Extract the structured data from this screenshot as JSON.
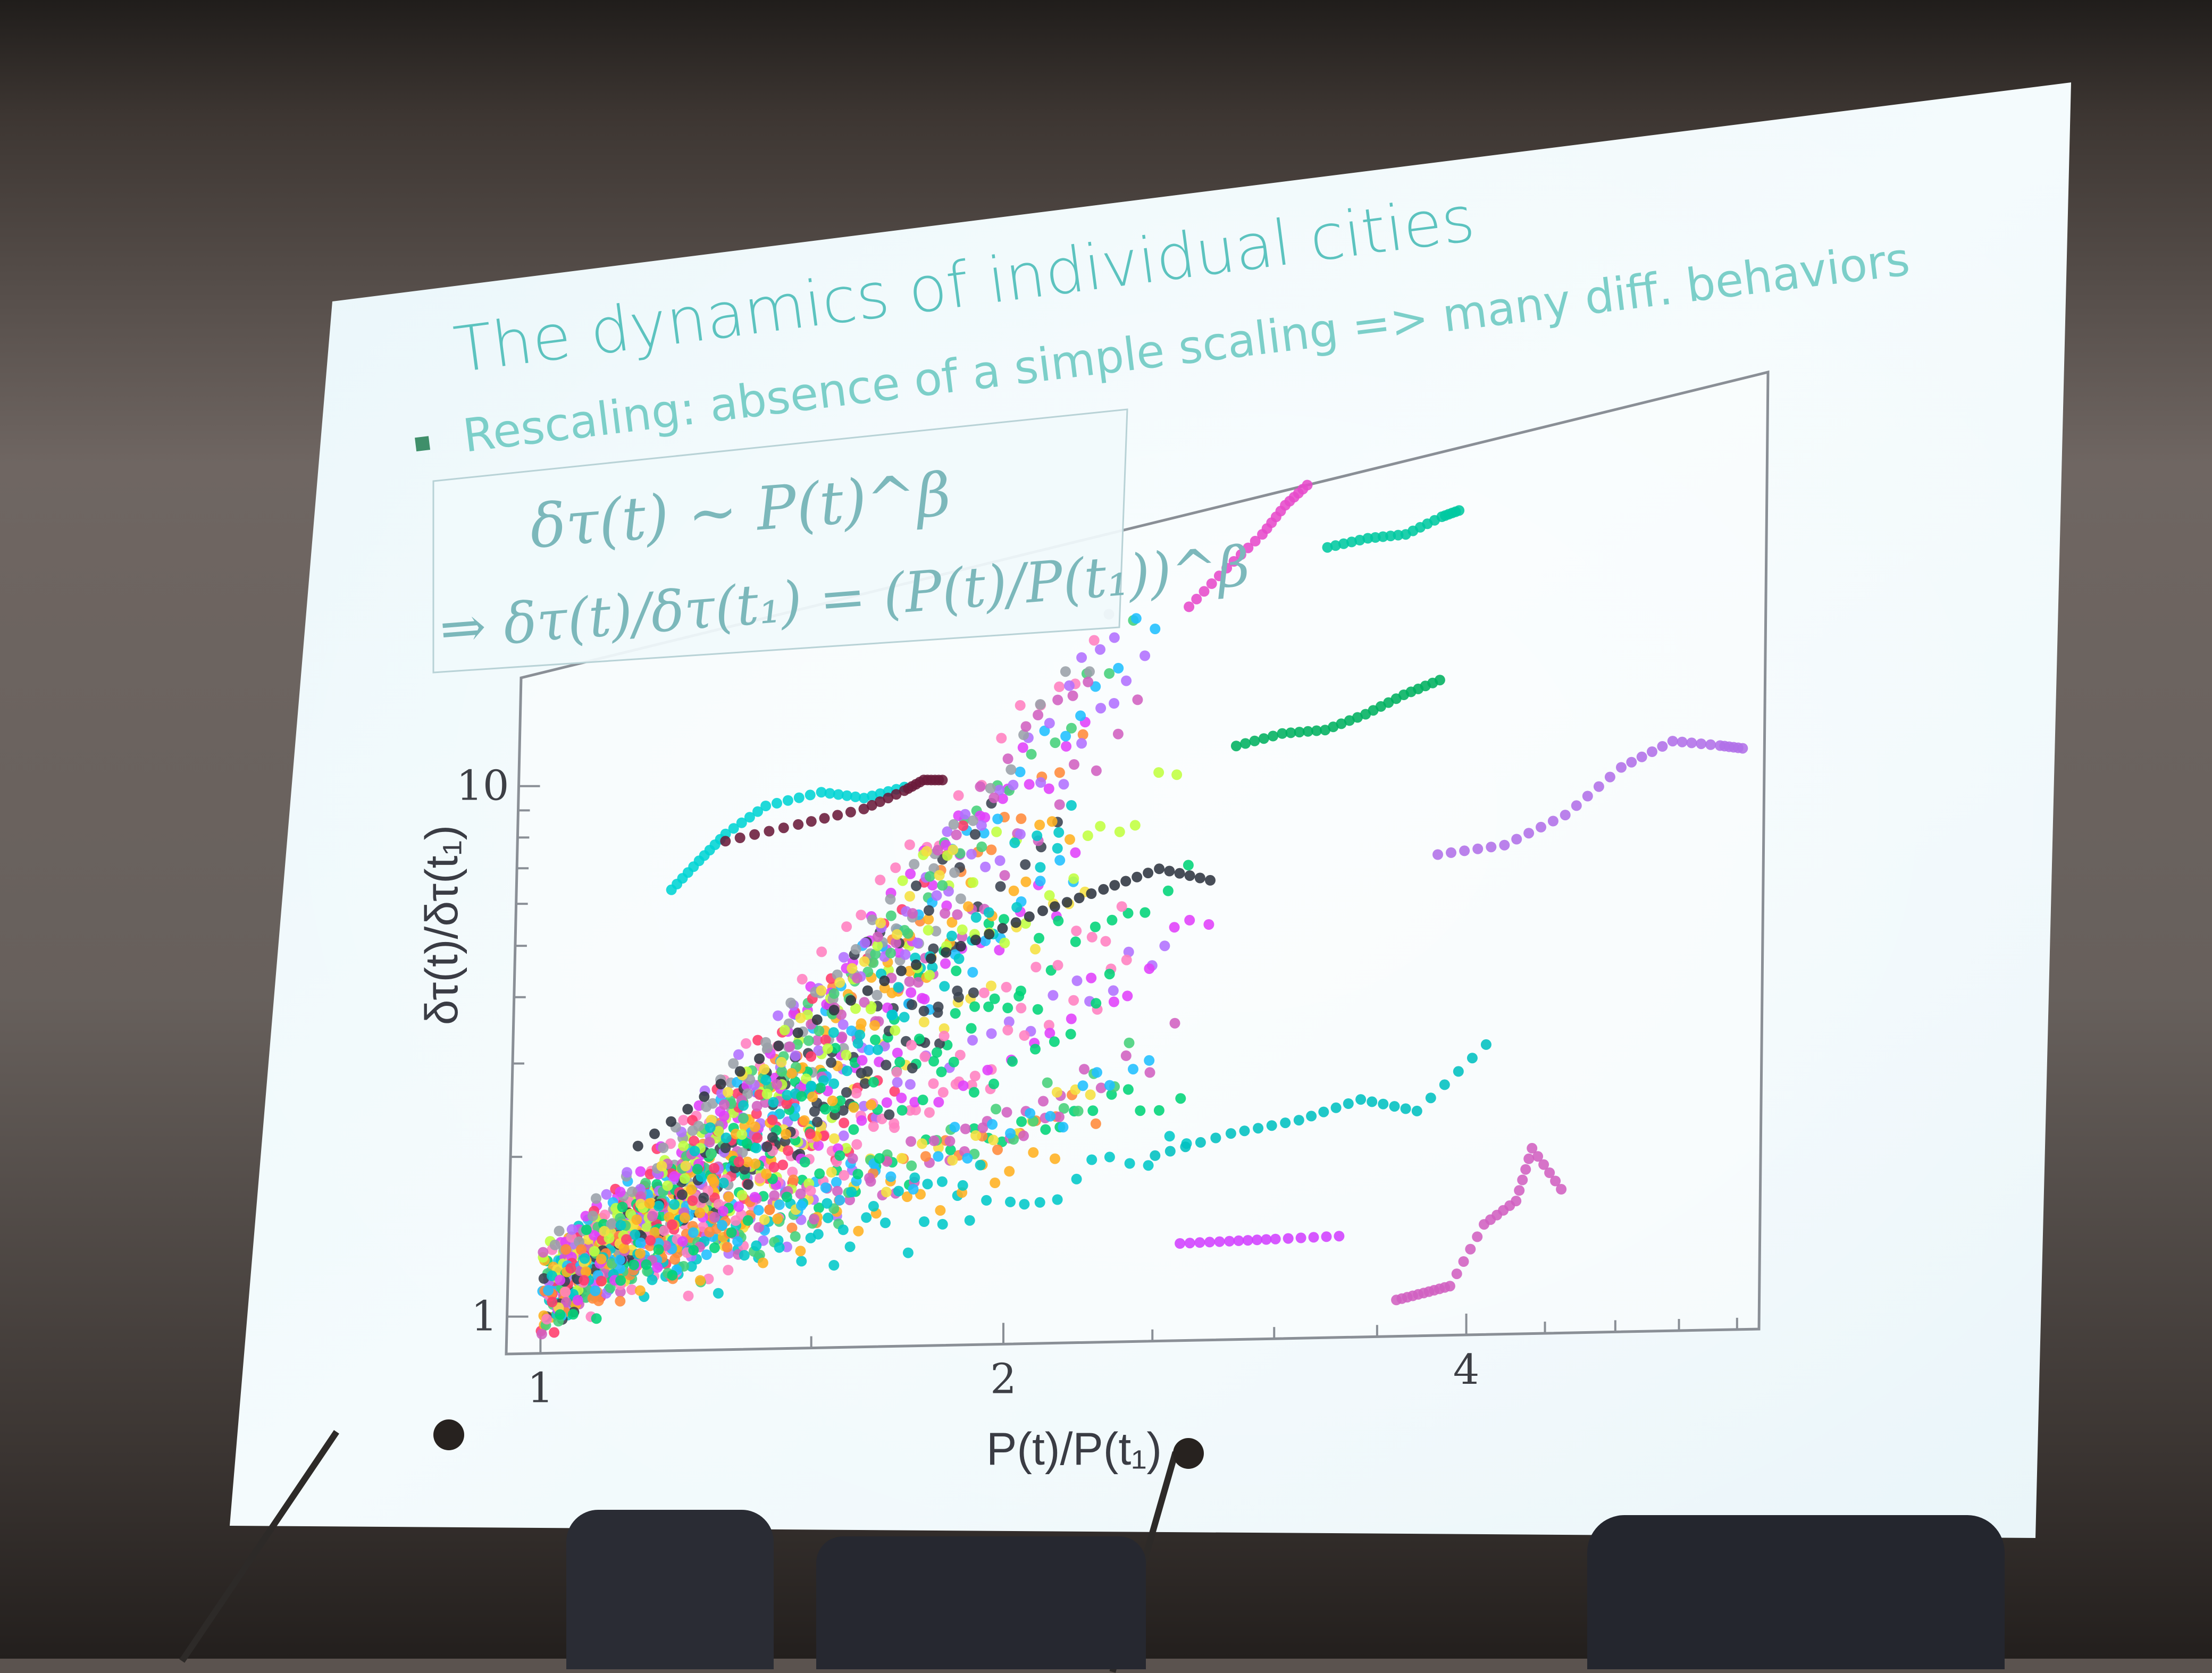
{
  "slide": {
    "title": "The dynamics of individual cities",
    "bullet": "Rescaling: absence of a simple scaling => many diff. behaviors",
    "formula_line1": "δτ(t) ~ P(t)^β",
    "formula_line2": "⇒ δτ(t)/δτ(t₁) = (P(t)/P(t₁))^β"
  },
  "colors": {
    "screen": "#eef8fb",
    "title": "#5cc3bf",
    "bullet_marker": "#3f8f6a",
    "wall": "#67605c",
    "chair": "#2a2c34"
  },
  "chart_data": {
    "type": "scatter",
    "xlabel": "P(t)/P(t₁)",
    "ylabel": "δτ(t)/δτ(t₁)",
    "x_scale": "log",
    "y_scale": "log",
    "xlim": [
      0.95,
      6.2
    ],
    "ylim": [
      0.85,
      16
    ],
    "x_ticks": [
      1,
      2,
      4
    ],
    "y_ticks": [
      1,
      10
    ],
    "palette": [
      "#00c8c8",
      "#e040fb",
      "#00d478",
      "#ffb020",
      "#ff3b6b",
      "#b070ff",
      "#ff80c0",
      "#9aa0a8",
      "#3a4250",
      "#ff8a3a",
      "#44d07a",
      "#c0ff40",
      "#1fbfff",
      "#d060c0",
      "#f5e040"
    ],
    "highlighted_series": [
      {
        "name": "",
        "color": "#00d4d4",
        "points": [
          [
            1.2,
            5.7
          ],
          [
            1.25,
            6.3
          ],
          [
            1.3,
            6.9
          ],
          [
            1.38,
            7.5
          ],
          [
            1.5,
            7.6
          ],
          [
            1.6,
            7.2
          ],
          [
            1.7,
            7.3
          ]
        ]
      },
      {
        "name": "",
        "color": "#6a1a3a",
        "points": [
          [
            1.3,
            6.7
          ],
          [
            1.45,
            6.8
          ],
          [
            1.6,
            6.9
          ],
          [
            1.7,
            7.2
          ],
          [
            1.75,
            7.4
          ],
          [
            1.8,
            7.3
          ]
        ]
      },
      {
        "name": "",
        "color": "#e64acb",
        "points": [
          [
            2.6,
            11.5
          ],
          [
            2.75,
            12.8
          ],
          [
            2.9,
            14.0
          ],
          [
            3.0,
            15.2
          ],
          [
            3.1,
            16.0
          ]
        ]
      },
      {
        "name": "",
        "color": "#00c8a0",
        "points": [
          [
            3.2,
            12.7
          ],
          [
            3.4,
            12.7
          ],
          [
            3.6,
            12.5
          ],
          [
            3.8,
            12.9
          ],
          [
            3.9,
            13.0
          ]
        ]
      },
      {
        "name": "",
        "color": "#00b060",
        "points": [
          [
            2.8,
            6.8
          ],
          [
            3.0,
            6.9
          ],
          [
            3.2,
            6.8
          ],
          [
            3.4,
            7.0
          ],
          [
            3.6,
            7.3
          ],
          [
            3.8,
            7.5
          ]
        ]
      },
      {
        "name": "",
        "color": "#b070e8",
        "points": [
          [
            3.8,
            4.2
          ],
          [
            4.2,
            4.2
          ],
          [
            4.6,
            4.5
          ],
          [
            5.0,
            5.1
          ],
          [
            5.4,
            5.4
          ],
          [
            5.8,
            5.2
          ],
          [
            6.0,
            5.1
          ]
        ]
      },
      {
        "name": "",
        "color": "#00c0c0",
        "points": [
          [
            2.5,
            1.65
          ],
          [
            2.8,
            1.75
          ],
          [
            3.1,
            1.8
          ],
          [
            3.4,
            1.9
          ],
          [
            3.7,
            1.8
          ],
          [
            4.1,
            2.2
          ]
        ]
      },
      {
        "name": "",
        "color": "#d060c0",
        "points": [
          [
            3.6,
            0.96
          ],
          [
            3.75,
            0.98
          ],
          [
            3.9,
            1.0
          ],
          [
            4.1,
            1.22
          ],
          [
            4.3,
            1.31
          ],
          [
            4.4,
            1.55
          ],
          [
            4.6,
            1.35
          ]
        ]
      },
      {
        "name": "",
        "color": "#d040ff",
        "points": [
          [
            2.6,
            1.2
          ],
          [
            2.8,
            1.2
          ],
          [
            3.0,
            1.2
          ],
          [
            3.3,
            1.2
          ]
        ]
      },
      {
        "name": "",
        "color": "#2e3440",
        "points": [
          [
            1.15,
            2.0
          ],
          [
            1.3,
            2.5
          ],
          [
            1.5,
            3.1
          ],
          [
            1.7,
            3.6
          ],
          [
            1.9,
            3.9
          ],
          [
            2.1,
            4.2
          ],
          [
            2.3,
            4.4
          ],
          [
            2.5,
            4.6
          ],
          [
            2.7,
            4.3
          ]
        ]
      }
    ]
  }
}
